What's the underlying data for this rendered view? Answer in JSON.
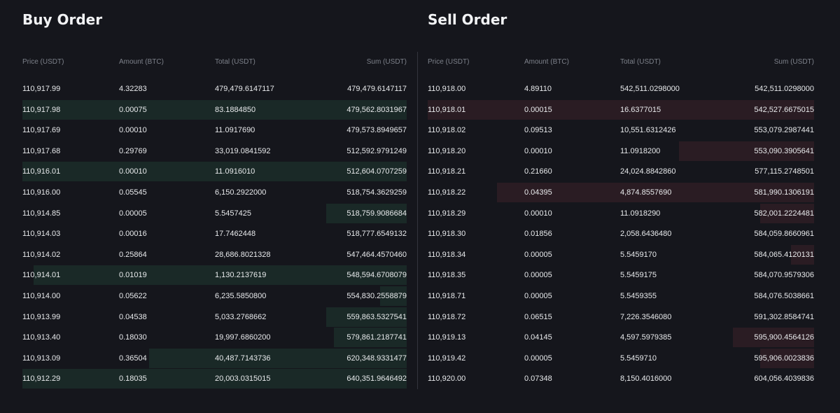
{
  "headers": [
    "Price (USDT)",
    "Amount (BTC)",
    "Total (USDT)",
    "Sum (USDT)"
  ],
  "buy": {
    "title": "Buy Order",
    "color": "#1a2927",
    "rows": [
      {
        "price": "110,917.99",
        "amount": "4.32283",
        "total": "479,479.6147117",
        "sum": "479,479.6147117",
        "depth": 0
      },
      {
        "price": "110,917.98",
        "amount": "0.00075",
        "total": "83.1884850",
        "sum": "479,562.8031967",
        "depth": 1
      },
      {
        "price": "110,917.69",
        "amount": "0.00010",
        "total": "11.0917690",
        "sum": "479,573.8949657",
        "depth": 0
      },
      {
        "price": "110,917.68",
        "amount": "0.29769",
        "total": "33,019.0841592",
        "sum": "512,592.9791249",
        "depth": 0
      },
      {
        "price": "110,916.01",
        "amount": "0.00010",
        "total": "11.0916010",
        "sum": "512,604.0707259",
        "depth": 1
      },
      {
        "price": "110,916.00",
        "amount": "0.05545",
        "total": "6,150.2922000",
        "sum": "518,754.3629259",
        "depth": 0
      },
      {
        "price": "110,914.85",
        "amount": "0.00005",
        "total": "5.5457425",
        "sum": "518,759.9086684",
        "depth": 0.21
      },
      {
        "price": "110,914.03",
        "amount": "0.00016",
        "total": "17.7462448",
        "sum": "518,777.6549132",
        "depth": 0
      },
      {
        "price": "110,914.02",
        "amount": "0.25864",
        "total": "28,686.8021328",
        "sum": "547,464.4570460",
        "depth": 0
      },
      {
        "price": "110,914.01",
        "amount": "0.01019",
        "total": "1,130.2137619",
        "sum": "548,594.6708079",
        "depth": 0.97
      },
      {
        "price": "110,914.00",
        "amount": "0.05622",
        "total": "6,235.5850800",
        "sum": "554,830.2558879",
        "depth": 0.07
      },
      {
        "price": "110,913.99",
        "amount": "0.04538",
        "total": "5,033.2768662",
        "sum": "559,863.5327541",
        "depth": 0.21
      },
      {
        "price": "110,913.40",
        "amount": "0.18030",
        "total": "19,997.6860200",
        "sum": "579,861.2187741",
        "depth": 0.19
      },
      {
        "price": "110,913.09",
        "amount": "0.36504",
        "total": "40,487.7143736",
        "sum": "620,348.9331477",
        "depth": 0.67
      },
      {
        "price": "110,912.29",
        "amount": "0.18035",
        "total": "20,003.0315015",
        "sum": "640,351.9646492",
        "depth": 1
      }
    ]
  },
  "sell": {
    "title": "Sell Order",
    "color": "#2a1c23",
    "rows": [
      {
        "price": "110,918.00",
        "amount": "4.89110",
        "total": "542,511.0298000",
        "sum": "542,511.0298000",
        "depth": 0
      },
      {
        "price": "110,918.01",
        "amount": "0.00015",
        "total": "16.6377015",
        "sum": "542,527.6675015",
        "depth": 1
      },
      {
        "price": "110,918.02",
        "amount": "0.09513",
        "total": "10,551.6312426",
        "sum": "553,079.2987441",
        "depth": 0
      },
      {
        "price": "110,918.20",
        "amount": "0.00010",
        "total": "11.0918200",
        "sum": "553,090.3905641",
        "depth": 0.35
      },
      {
        "price": "110,918.21",
        "amount": "0.21660",
        "total": "24,024.8842860",
        "sum": "577,115.2748501",
        "depth": 0
      },
      {
        "price": "110,918.22",
        "amount": "0.04395",
        "total": "4,874.8557690",
        "sum": "581,990.1306191",
        "depth": 0.82
      },
      {
        "price": "110,918.29",
        "amount": "0.00010",
        "total": "11.0918290",
        "sum": "582,001.2224481",
        "depth": 0.14
      },
      {
        "price": "110,918.30",
        "amount": "0.01856",
        "total": "2,058.6436480",
        "sum": "584,059.8660961",
        "depth": 0
      },
      {
        "price": "110,918.34",
        "amount": "0.00005",
        "total": "5.5459170",
        "sum": "584,065.4120131",
        "depth": 0.06
      },
      {
        "price": "110,918.35",
        "amount": "0.00005",
        "total": "5.5459175",
        "sum": "584,070.9579306",
        "depth": 0
      },
      {
        "price": "110,918.71",
        "amount": "0.00005",
        "total": "5.5459355",
        "sum": "584,076.5038661",
        "depth": 0
      },
      {
        "price": "110,918.72",
        "amount": "0.06515",
        "total": "7,226.3546080",
        "sum": "591,302.8584741",
        "depth": 0
      },
      {
        "price": "110,919.13",
        "amount": "0.04145",
        "total": "4,597.5979385",
        "sum": "595,900.4564126",
        "depth": 0.21
      },
      {
        "price": "110,919.42",
        "amount": "0.00005",
        "total": "5.5459710",
        "sum": "595,906.0023836",
        "depth": 0.14
      },
      {
        "price": "110,920.00",
        "amount": "0.07348",
        "total": "8,150.4016000",
        "sum": "604,056.4039836",
        "depth": 0
      }
    ]
  }
}
